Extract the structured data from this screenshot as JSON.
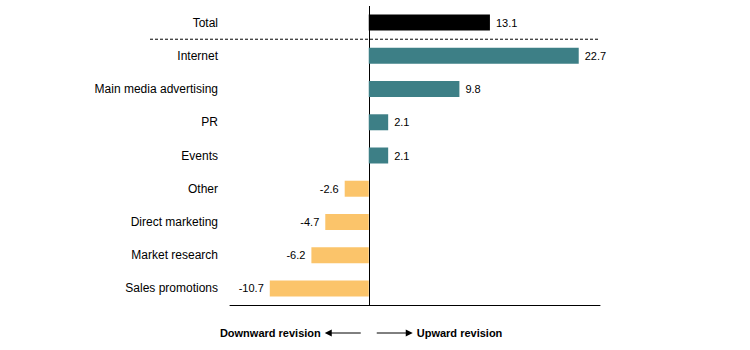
{
  "chart_data": {
    "type": "bar",
    "orientation": "horizontal",
    "categories": [
      "Total",
      "Internet",
      "Main media advertising",
      "PR",
      "Events",
      "Other",
      "Direct marketing",
      "Market research",
      "Sales promotions"
    ],
    "values": [
      13.1,
      22.7,
      9.8,
      2.1,
      2.1,
      -2.6,
      -4.7,
      -6.2,
      -10.7
    ],
    "colors": [
      "#000000",
      "#3d7f86",
      "#3d7f86",
      "#3d7f86",
      "#3d7f86",
      "#fbc46a",
      "#fbc46a",
      "#fbc46a",
      "#fbc46a"
    ],
    "xlim": [
      -15,
      25
    ],
    "xticks": [
      0
    ],
    "grid": true,
    "data_labels": true,
    "tick_labels": "y",
    "annotations": [
      "Downward revision",
      "Upward revision"
    ]
  }
}
